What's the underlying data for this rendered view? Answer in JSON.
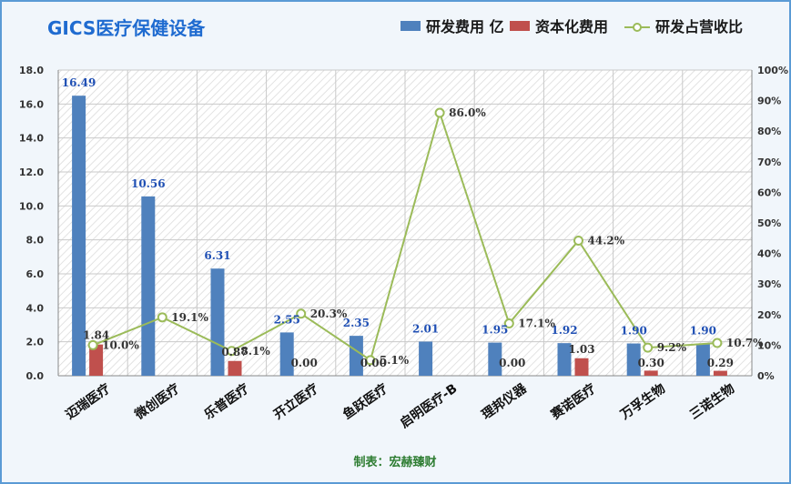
{
  "title": "GICS医疗保健设备",
  "footer": "制表：宏赫臻财",
  "colors": {
    "rd": "#4f81bd",
    "cap": "#c0504d",
    "pct": "#9bbb59",
    "title": "#1f6bd0",
    "border": "#5b9bd5"
  },
  "legend": [
    "研发费用 亿",
    "资本化费用",
    "研发占营收比"
  ],
  "chart_data": {
    "type": "bar",
    "categories": [
      "迈瑞医疗",
      "微创医疗",
      "乐普医疗",
      "开立医疗",
      "鱼跃医疗",
      "启明医疗-B",
      "理邦仪器",
      "赛诺医疗",
      "万孚生物",
      "三诺生物"
    ],
    "series": [
      {
        "name": "研发费用 亿",
        "type": "bar",
        "axis": "left",
        "values": [
          16.49,
          10.56,
          6.31,
          2.55,
          2.35,
          2.01,
          1.95,
          1.92,
          1.9,
          1.9
        ],
        "labels": [
          "16.49",
          "10.56",
          "6.31",
          "2.55",
          "2.35",
          "2.01",
          "1.95",
          "1.92",
          "1.90",
          "1.90"
        ]
      },
      {
        "name": "资本化费用",
        "type": "bar",
        "axis": "left",
        "values": [
          1.84,
          null,
          0.87,
          0.0,
          0.0,
          null,
          0.0,
          1.03,
          0.3,
          0.29
        ],
        "labels": [
          "1.84",
          "",
          "0.87",
          "0.00",
          "0.00",
          "",
          "0.00",
          "1.03",
          "0.30",
          "0.29"
        ]
      },
      {
        "name": "研发占营收比",
        "type": "line",
        "axis": "right",
        "values": [
          10.0,
          19.1,
          8.1,
          20.3,
          5.1,
          86.0,
          17.1,
          44.2,
          9.2,
          10.7
        ],
        "labels": [
          "10.0%",
          "19.1%",
          "8.1%",
          "20.3%",
          "5.1%",
          "86.0%",
          "17.1%",
          "44.2%",
          "9.2%",
          "10.7%"
        ]
      }
    ],
    "ylim": [
      0,
      18
    ],
    "y_ticks": [
      "0.0",
      "2.0",
      "4.0",
      "6.0",
      "8.0",
      "10.0",
      "12.0",
      "14.0",
      "16.0",
      "18.0"
    ],
    "y2lim": [
      0,
      100
    ],
    "y2_ticks": [
      "0%",
      "10%",
      "20%",
      "30%",
      "40%",
      "50%",
      "60%",
      "70%",
      "80%",
      "90%",
      "100%"
    ],
    "grid": true,
    "legend_position": "top-right"
  }
}
